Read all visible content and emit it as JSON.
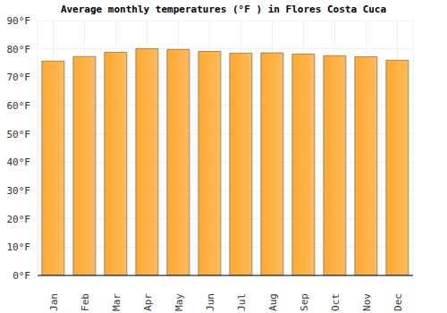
{
  "chart_data": {
    "type": "bar",
    "title": "Average monthly temperatures (°F ) in Flores Costa Cuca",
    "categories": [
      "Jan",
      "Feb",
      "Mar",
      "Apr",
      "May",
      "Jun",
      "Jul",
      "Aug",
      "Sep",
      "Oct",
      "Nov",
      "Dec"
    ],
    "values": [
      75.7,
      77.3,
      78.8,
      80.1,
      79.8,
      79.1,
      78.5,
      78.6,
      78.2,
      77.6,
      77.2,
      76.0
    ],
    "color": "#ffa930",
    "ylim": [
      0,
      90
    ],
    "yticks": [
      {
        "value": 0,
        "label": "0°F"
      },
      {
        "value": 10,
        "label": "10°F"
      },
      {
        "value": 20,
        "label": "20°F"
      },
      {
        "value": 30,
        "label": "30°F"
      },
      {
        "value": 40,
        "label": "40°F"
      },
      {
        "value": 50,
        "label": "50°F"
      },
      {
        "value": 60,
        "label": "60°F"
      },
      {
        "value": 70,
        "label": "70°F"
      },
      {
        "value": 80,
        "label": "80°F"
      },
      {
        "value": 90,
        "label": "90°F"
      }
    ],
    "grid": true
  }
}
